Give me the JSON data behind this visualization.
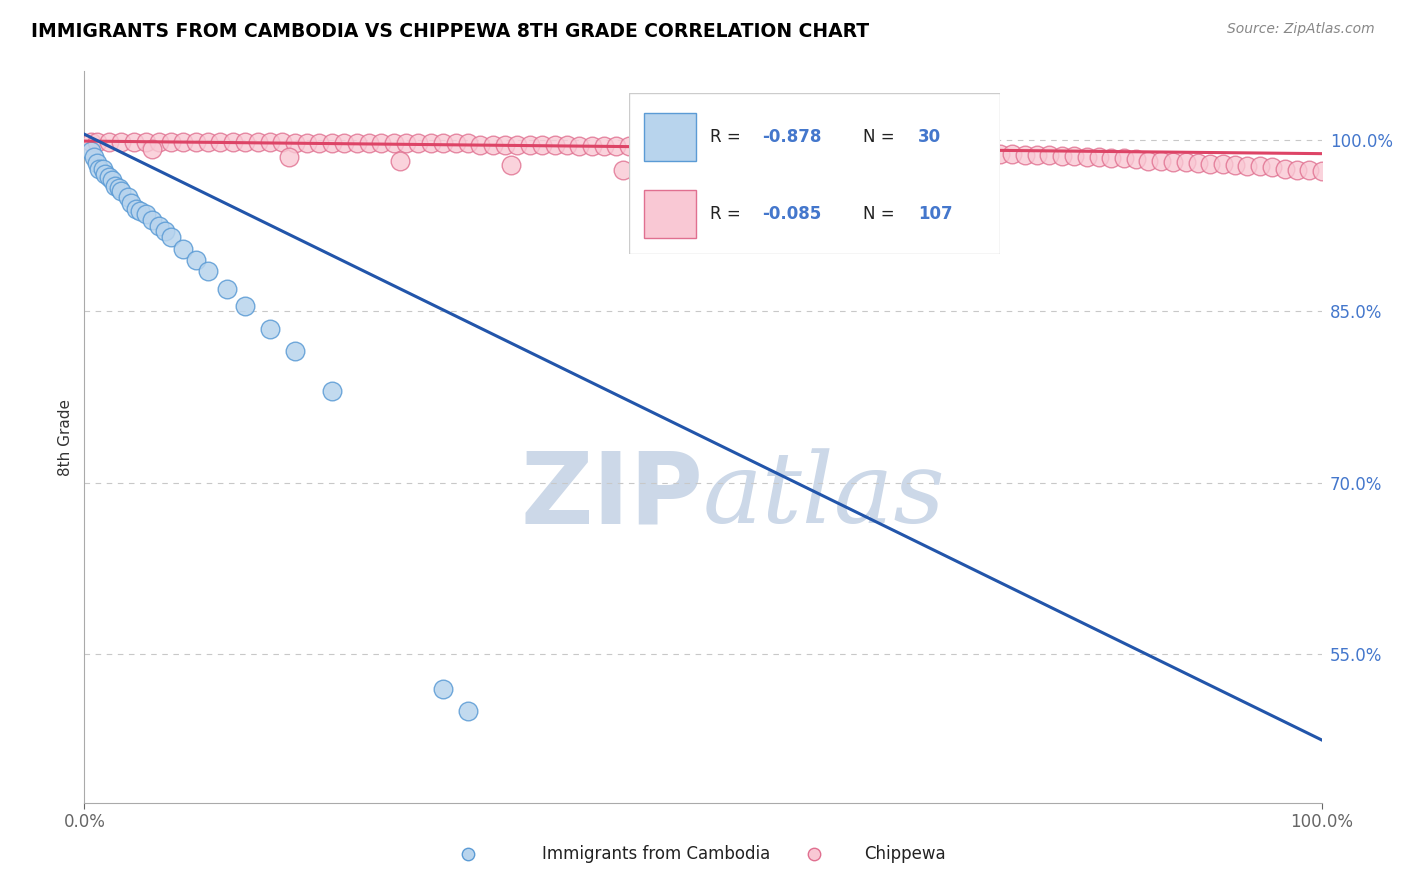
{
  "title": "IMMIGRANTS FROM CAMBODIA VS CHIPPEWA 8TH GRADE CORRELATION CHART",
  "source_text": "Source: ZipAtlas.com",
  "ylabel": "8th Grade",
  "x_min": 0.0,
  "x_max": 1.0,
  "y_min": 0.42,
  "y_max": 1.06,
  "y_ticks": [
    0.55,
    0.7,
    0.85,
    1.0
  ],
  "y_tick_labels": [
    "55.0%",
    "70.0%",
    "85.0%",
    "100.0%"
  ],
  "x_ticks": [
    0.0,
    1.0
  ],
  "x_tick_labels": [
    "0.0%",
    "100.0%"
  ],
  "blue_fill": "#b8d4ed",
  "blue_edge": "#5b9bd5",
  "pink_fill": "#f9c8d4",
  "pink_edge": "#e07090",
  "blue_line_color": "#2255aa",
  "pink_line_color": "#dd4466",
  "grid_color": "#c8c8c8",
  "watermark_color": "#ccd8e8",
  "tick_label_color": "#4477cc",
  "R_blue": -0.878,
  "N_blue": 30,
  "R_pink": -0.085,
  "N_pink": 107,
  "blue_scatter_x": [
    0.005,
    0.008,
    0.01,
    0.012,
    0.015,
    0.017,
    0.02,
    0.022,
    0.025,
    0.028,
    0.03,
    0.035,
    0.038,
    0.042,
    0.045,
    0.05,
    0.055,
    0.06,
    0.065,
    0.07,
    0.08,
    0.09,
    0.1,
    0.115,
    0.13,
    0.15,
    0.17,
    0.2,
    0.29,
    0.31
  ],
  "blue_scatter_y": [
    0.99,
    0.985,
    0.98,
    0.975,
    0.975,
    0.97,
    0.968,
    0.965,
    0.96,
    0.958,
    0.955,
    0.95,
    0.945,
    0.94,
    0.938,
    0.935,
    0.93,
    0.925,
    0.92,
    0.915,
    0.905,
    0.895,
    0.885,
    0.87,
    0.855,
    0.835,
    0.815,
    0.78,
    0.52,
    0.5
  ],
  "blue_line_x": [
    0.0,
    1.0
  ],
  "blue_line_y": [
    1.005,
    0.475
  ],
  "pink_scatter_x": [
    0.005,
    0.01,
    0.02,
    0.03,
    0.04,
    0.05,
    0.06,
    0.07,
    0.08,
    0.09,
    0.1,
    0.11,
    0.12,
    0.13,
    0.14,
    0.15,
    0.16,
    0.17,
    0.18,
    0.19,
    0.2,
    0.21,
    0.22,
    0.23,
    0.24,
    0.25,
    0.26,
    0.27,
    0.28,
    0.29,
    0.3,
    0.31,
    0.32,
    0.33,
    0.34,
    0.35,
    0.36,
    0.37,
    0.38,
    0.39,
    0.4,
    0.41,
    0.42,
    0.43,
    0.44,
    0.45,
    0.46,
    0.47,
    0.48,
    0.49,
    0.5,
    0.51,
    0.52,
    0.53,
    0.54,
    0.55,
    0.56,
    0.57,
    0.58,
    0.59,
    0.6,
    0.61,
    0.62,
    0.63,
    0.64,
    0.65,
    0.66,
    0.67,
    0.68,
    0.69,
    0.7,
    0.71,
    0.72,
    0.73,
    0.74,
    0.75,
    0.76,
    0.77,
    0.78,
    0.79,
    0.8,
    0.81,
    0.82,
    0.83,
    0.84,
    0.85,
    0.86,
    0.87,
    0.88,
    0.89,
    0.9,
    0.91,
    0.92,
    0.93,
    0.94,
    0.95,
    0.96,
    0.97,
    0.98,
    0.99,
    1.0,
    0.055,
    0.165,
    0.255,
    0.345,
    0.435,
    0.535
  ],
  "pink_scatter_y": [
    0.998,
    0.998,
    0.998,
    0.998,
    0.998,
    0.998,
    0.998,
    0.998,
    0.998,
    0.998,
    0.998,
    0.998,
    0.998,
    0.998,
    0.998,
    0.998,
    0.998,
    0.997,
    0.997,
    0.997,
    0.997,
    0.997,
    0.997,
    0.997,
    0.997,
    0.997,
    0.997,
    0.997,
    0.997,
    0.997,
    0.997,
    0.997,
    0.996,
    0.996,
    0.996,
    0.996,
    0.996,
    0.996,
    0.996,
    0.996,
    0.995,
    0.995,
    0.995,
    0.995,
    0.995,
    0.995,
    0.995,
    0.995,
    0.994,
    0.994,
    0.994,
    0.994,
    0.994,
    0.994,
    0.993,
    0.993,
    0.993,
    0.993,
    0.993,
    0.993,
    0.992,
    0.992,
    0.992,
    0.992,
    0.991,
    0.991,
    0.991,
    0.991,
    0.99,
    0.99,
    0.99,
    0.989,
    0.989,
    0.989,
    0.988,
    0.988,
    0.987,
    0.987,
    0.987,
    0.986,
    0.986,
    0.985,
    0.985,
    0.984,
    0.984,
    0.983,
    0.982,
    0.982,
    0.981,
    0.981,
    0.98,
    0.979,
    0.979,
    0.978,
    0.977,
    0.977,
    0.976,
    0.975,
    0.974,
    0.974,
    0.973,
    0.992,
    0.985,
    0.982,
    0.978,
    0.974,
    0.97
  ],
  "pink_line_x": [
    0.0,
    1.0
  ],
  "pink_line_y": [
    0.999,
    0.988
  ]
}
